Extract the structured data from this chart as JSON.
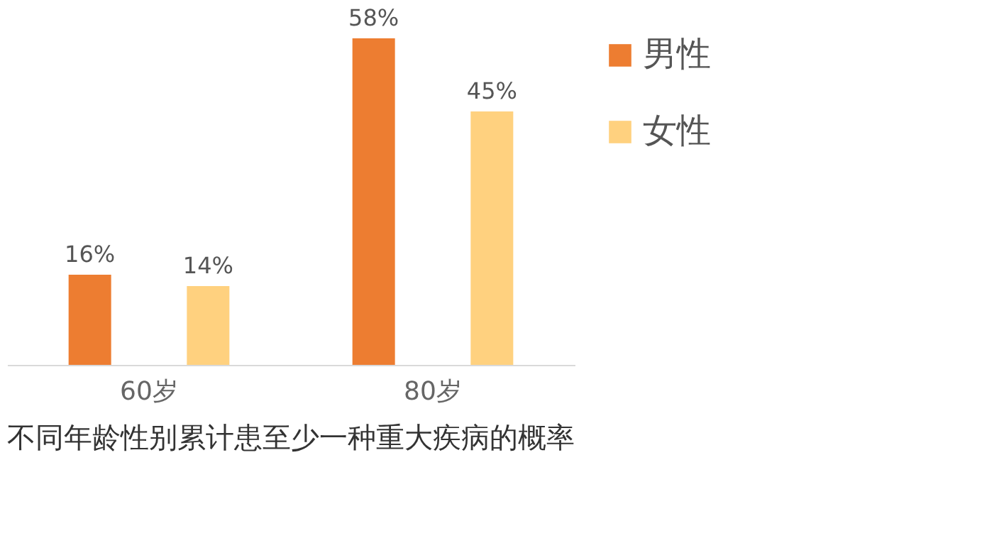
{
  "chart_data": {
    "type": "bar",
    "title": "不同年龄性别累计患至少一种重大疾病的概率",
    "categories": [
      "60岁",
      "80岁"
    ],
    "series": [
      {
        "name": "男性",
        "color": "#ed7d31",
        "values": [
          16,
          58
        ],
        "value_labels": [
          "16%",
          "58%"
        ]
      },
      {
        "name": "女性",
        "color": "#ffd17f",
        "values": [
          14,
          45
        ],
        "value_labels": [
          "14%",
          "45%"
        ]
      }
    ],
    "legend": "right"
  }
}
